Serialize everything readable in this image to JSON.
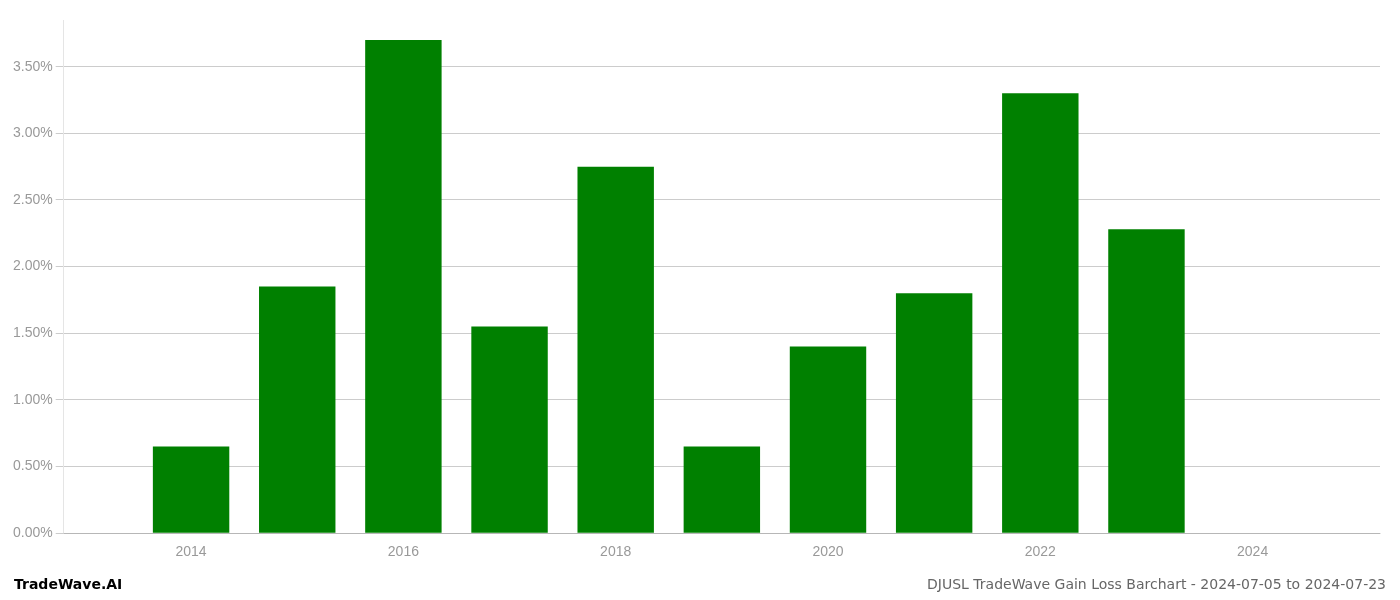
{
  "chart_data": {
    "type": "bar",
    "x": [
      2014,
      2015,
      2016,
      2017,
      2018,
      2019,
      2020,
      2021,
      2022,
      2023
    ],
    "values": [
      0.0065,
      0.0185,
      0.037,
      0.0155,
      0.0275,
      0.0065,
      0.014,
      0.018,
      0.033,
      0.0228
    ],
    "color": "#008000",
    "xlim": [
      2012.8,
      2025.2
    ],
    "xticks": [
      2014,
      2016,
      2018,
      2020,
      2022,
      2024
    ],
    "ylim": [
      0,
      0.0385
    ],
    "yticks": [
      {
        "value": 0.0,
        "label": "0.00%"
      },
      {
        "value": 0.005,
        "label": "0.50%"
      },
      {
        "value": 0.01,
        "label": "1.00%"
      },
      {
        "value": 0.015,
        "label": "1.50%"
      },
      {
        "value": 0.02,
        "label": "2.00%"
      },
      {
        "value": 0.025,
        "label": "2.50%"
      },
      {
        "value": 0.03,
        "label": "3.00%"
      },
      {
        "value": 0.035,
        "label": "3.50%"
      }
    ],
    "grid": true,
    "annotations": [
      "TradeWave.AI",
      "DJUSL TradeWave Gain Loss Barchart - 2024-07-05 to 2024-07-23"
    ]
  }
}
